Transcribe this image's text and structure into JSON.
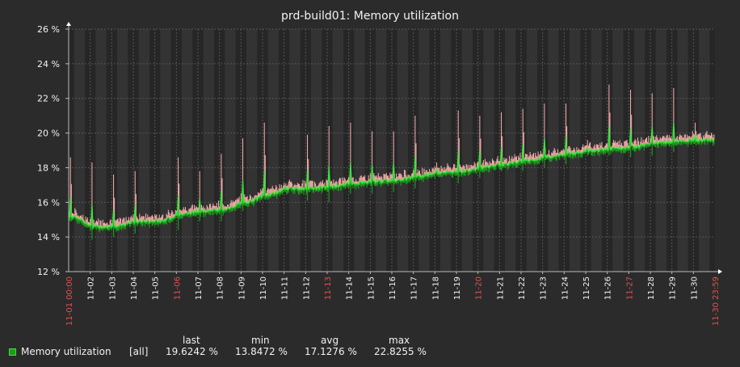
{
  "chart_data": {
    "type": "line",
    "title": "prd-build01: Memory utilization",
    "ylabel": "",
    "xlabel": "",
    "y_unit": "%",
    "ylim": [
      12,
      26
    ],
    "y_ticks": [
      "12 %",
      "14 %",
      "16 %",
      "18 %",
      "20 %",
      "22 %",
      "24 %",
      "26 %"
    ],
    "x_start_label": "11-01 00:00",
    "x_end_label": "11-30 23:59",
    "x_day_labels": [
      "11-02",
      "11-03",
      "11-04",
      "11-05",
      "11-06",
      "11-07",
      "11-08",
      "11-09",
      "11-10",
      "11-11",
      "11-12",
      "11-13",
      "11-14",
      "11-15",
      "11-16",
      "11-17",
      "11-18",
      "11-19",
      "11-20",
      "11-21",
      "11-22",
      "11-23",
      "11-24",
      "11-25",
      "11-26",
      "11-27",
      "11-28",
      "11-29",
      "11-30"
    ],
    "highlight_days": [
      "11-06",
      "11-13",
      "11-20",
      "11-27"
    ],
    "colors": {
      "background": "#2b2b2b",
      "plot_day": "#333333",
      "plot_night": "#262626",
      "grid": "#555555",
      "avg_line": "#40e040",
      "avg_fill": "#1a9c1a",
      "max_line": "#ffb0b0",
      "highlight_label": "#e05050",
      "text": "#f2f2f2"
    },
    "series": [
      {
        "name": "Memory utilization",
        "function": "[all]",
        "daily_avg": [
          15.2,
          14.6,
          14.6,
          14.9,
          14.9,
          15.3,
          15.5,
          15.6,
          16.0,
          16.4,
          16.8,
          16.8,
          16.9,
          17.1,
          17.2,
          17.3,
          17.5,
          17.7,
          17.8,
          18.0,
          18.2,
          18.4,
          18.6,
          18.8,
          19.0,
          19.1,
          19.2,
          19.4,
          19.5,
          19.6
        ],
        "daily_max": [
          18.6,
          18.3,
          17.6,
          17.8,
          15.3,
          18.6,
          17.8,
          18.8,
          19.7,
          20.6,
          17.1,
          19.9,
          20.4,
          20.6,
          20.1,
          20.1,
          21.0,
          18.3,
          21.3,
          21.0,
          21.2,
          21.4,
          21.7,
          21.7,
          19.6,
          22.8,
          22.5,
          22.3,
          22.6,
          20.6
        ],
        "daily_min": [
          14.9,
          13.85,
          14.0,
          14.2,
          14.7,
          14.4,
          14.9,
          14.9,
          15.5,
          16.2,
          16.6,
          16.1,
          16.0,
          16.5,
          16.5,
          16.6,
          16.8,
          17.5,
          17.1,
          17.4,
          17.8,
          17.8,
          18.0,
          18.2,
          18.7,
          18.7,
          18.6,
          18.7,
          18.9,
          19.4
        ]
      }
    ],
    "legend": {
      "name": "Memory utilization",
      "function": "[all]",
      "headers": [
        "last",
        "min",
        "avg",
        "max"
      ],
      "values": [
        "19.6242 %",
        "13.8472 %",
        "17.1276 %",
        "22.8255 %"
      ]
    }
  }
}
